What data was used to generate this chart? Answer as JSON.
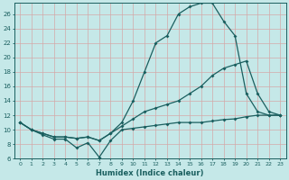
{
  "xlabel": "Humidex (Indice chaleur)",
  "bg_color": "#c5e8e8",
  "line_color": "#1a5f5f",
  "grid_color": "#d4a8a8",
  "xlim": [
    -0.5,
    23.5
  ],
  "ylim": [
    6,
    27.5
  ],
  "yticks": [
    6,
    8,
    10,
    12,
    14,
    16,
    18,
    20,
    22,
    24,
    26
  ],
  "xticks": [
    0,
    1,
    2,
    3,
    4,
    5,
    6,
    7,
    8,
    9,
    10,
    11,
    12,
    13,
    14,
    15,
    16,
    17,
    18,
    19,
    20,
    21,
    22,
    23
  ],
  "line_top_x": [
    0,
    1,
    2,
    3,
    4,
    5,
    6,
    7,
    8,
    9,
    10,
    11,
    12,
    13,
    14,
    15,
    16,
    17,
    18,
    19,
    20,
    21,
    22,
    23
  ],
  "line_top_y": [
    11,
    10,
    9.5,
    9,
    9,
    8.8,
    9,
    8.5,
    9.5,
    11,
    14,
    18,
    22,
    23,
    26,
    27,
    27.5,
    27.5,
    25,
    23,
    15,
    12.5,
    12,
    12
  ],
  "line_mid_x": [
    0,
    1,
    2,
    3,
    4,
    5,
    6,
    7,
    8,
    9,
    10,
    11,
    12,
    13,
    14,
    15,
    16,
    17,
    18,
    19,
    20,
    21,
    22,
    23
  ],
  "line_mid_y": [
    11,
    10,
    9.5,
    9,
    9,
    8.8,
    9,
    8.5,
    9.5,
    10.5,
    11.5,
    12.5,
    13,
    13.5,
    14,
    15,
    16,
    17.5,
    18.5,
    19,
    19.5,
    15,
    12.5,
    12
  ],
  "line_bot_x": [
    0,
    1,
    2,
    3,
    4,
    5,
    6,
    7,
    8,
    9,
    10,
    11,
    12,
    13,
    14,
    15,
    16,
    17,
    18,
    19,
    20,
    21,
    22,
    23
  ],
  "line_bot_y": [
    11,
    10,
    9.3,
    8.7,
    8.7,
    7.5,
    8.2,
    6.2,
    8.5,
    10,
    10.2,
    10.4,
    10.6,
    10.8,
    11,
    11,
    11,
    11.2,
    11.4,
    11.5,
    11.8,
    12,
    12,
    12
  ]
}
